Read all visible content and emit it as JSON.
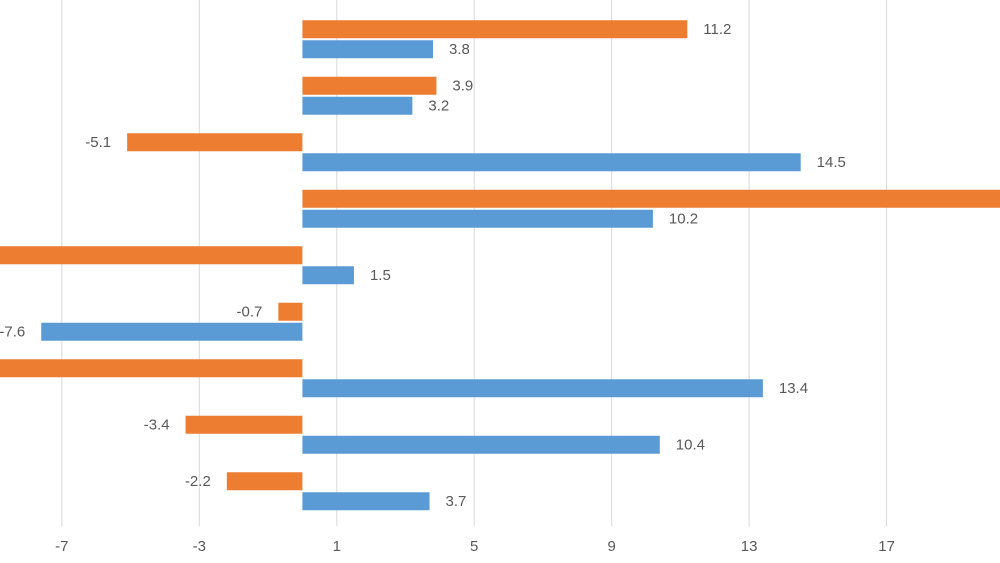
{
  "chart_data": {
    "type": "barh",
    "categories": [
      null,
      null,
      null,
      null,
      null,
      null,
      null,
      null,
      null
    ],
    "series": [
      {
        "color": "#ed7d31",
        "values": [
          11.2,
          3.9,
          -5.1,
          21,
          -9.5,
          -0.7,
          -9.5,
          -3.4,
          -2.2
        ]
      },
      {
        "color": "#5b9bd5",
        "values": [
          3.8,
          3.2,
          14.5,
          10.2,
          1.5,
          -7.6,
          13.4,
          10.4,
          3.7
        ]
      }
    ],
    "xlim": [
      -8.8,
      20.3
    ],
    "xticks": [
      -7,
      -3,
      1,
      5,
      9,
      13,
      17
    ],
    "grid": true
  }
}
